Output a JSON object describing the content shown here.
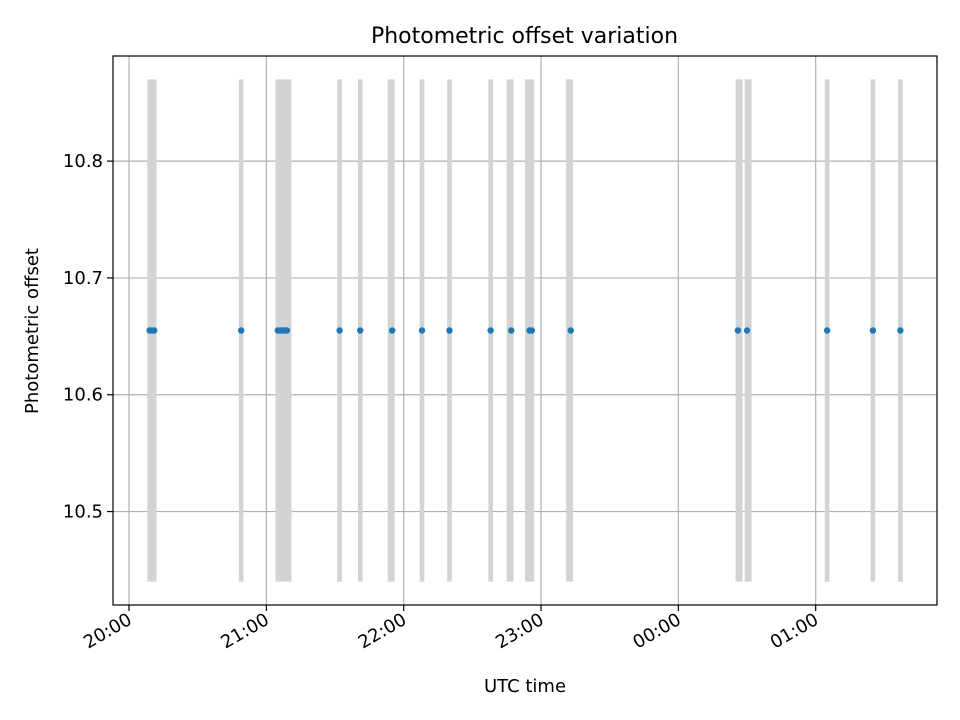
{
  "chart_data": {
    "type": "scatter",
    "title": "Photometric offset variation",
    "xlabel": "UTC time",
    "ylabel": "Photometric offset",
    "xlim": [
      "19:53",
      "25:53"
    ],
    "ylim": [
      10.42,
      10.89
    ],
    "x_ticks": [
      "20:00",
      "21:00",
      "22:00",
      "23:00",
      "00:00",
      "01:00"
    ],
    "x_tick_values": [
      "20:00",
      "21:00",
      "22:00",
      "23:00",
      "24:00",
      "25:00"
    ],
    "y_ticks": [
      10.5,
      10.6,
      10.7,
      10.8
    ],
    "grid": true,
    "marker_color": "#1f77b4",
    "band_color": "#d3d3d3",
    "bands": {
      "y_range": [
        10.44,
        10.87
      ],
      "intervals": [
        [
          "20:08",
          "20:12"
        ],
        [
          "20:48",
          "20:50"
        ],
        [
          "21:04",
          "21:11"
        ],
        [
          "21:31",
          "21:33"
        ],
        [
          "21:40",
          "21:42"
        ],
        [
          "21:53",
          "21:56"
        ],
        [
          "22:07",
          "22:09"
        ],
        [
          "22:19",
          "22:21"
        ],
        [
          "22:37",
          "22:39"
        ],
        [
          "22:45",
          "22:48"
        ],
        [
          "22:53",
          "22:57"
        ],
        [
          "23:11",
          "23:14"
        ],
        [
          "24:25",
          "24:28"
        ],
        [
          "24:29",
          "24:32"
        ],
        [
          "25:04",
          "25:06"
        ],
        [
          "25:24",
          "25:26"
        ],
        [
          "25:36",
          "25:38"
        ]
      ]
    },
    "series": [
      {
        "points": [
          [
            "20:09",
            10.655
          ],
          [
            "20:10",
            10.655
          ],
          [
            "20:11",
            10.655
          ],
          [
            "20:49",
            10.655
          ],
          [
            "21:05",
            10.655
          ],
          [
            "21:06",
            10.655
          ],
          [
            "21:07",
            10.655
          ],
          [
            "21:08",
            10.655
          ],
          [
            "21:09",
            10.655
          ],
          [
            "21:32",
            10.655
          ],
          [
            "21:41",
            10.655
          ],
          [
            "21:55",
            10.655
          ],
          [
            "22:08",
            10.655
          ],
          [
            "22:20",
            10.655
          ],
          [
            "22:38",
            10.655
          ],
          [
            "22:47",
            10.655
          ],
          [
            "22:55",
            10.655
          ],
          [
            "22:56",
            10.655
          ],
          [
            "23:13",
            10.655
          ],
          [
            "24:26",
            10.655
          ],
          [
            "24:30",
            10.655
          ],
          [
            "25:05",
            10.655
          ],
          [
            "25:25",
            10.655
          ],
          [
            "25:37",
            10.655
          ]
        ]
      }
    ]
  }
}
